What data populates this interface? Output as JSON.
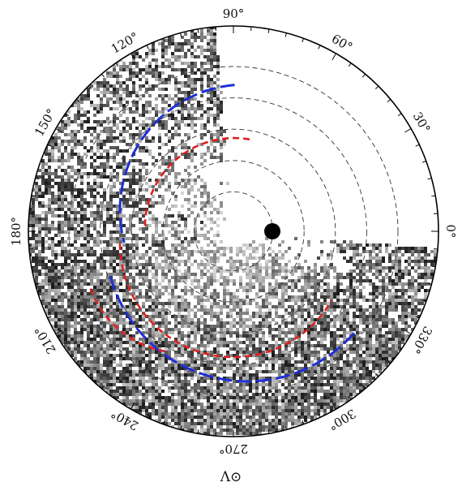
{
  "chart_data": {
    "type": "scatter",
    "projection": "polar",
    "angular_axis": {
      "label": "Λ⊙",
      "direction": "counterclockwise",
      "zero_position": "right",
      "ticks": [
        "0°",
        "30°",
        "60°",
        "90°",
        "120°",
        "150°",
        "180°",
        "210°",
        "240°",
        "270°",
        "300°",
        "330°"
      ]
    },
    "radial_grid": {
      "style": "dashed",
      "rings": 5
    },
    "density_map": {
      "style": "grayscale",
      "coverage_deg": [
        95,
        355
      ],
      "empty_sector_deg": [
        355,
        95
      ],
      "streams": [
        {
          "angle_deg": 165,
          "shade": "dark"
        },
        {
          "angle_deg": 190,
          "shade": "dark"
        }
      ]
    },
    "center_marker": {
      "shape": "circle",
      "color": "#000000",
      "offset_deg": 0
    },
    "overlay_arcs": [
      {
        "color": "#1f2fd6",
        "style": "long-dash",
        "from_deg": 95,
        "to_deg": 195
      },
      {
        "color": "#1f2fd6",
        "style": "long-dash",
        "from_deg": 195,
        "to_deg": 320
      },
      {
        "color": "#e02020",
        "style": "short-dash",
        "from_deg": 80,
        "to_deg": 180
      },
      {
        "color": "#e02020",
        "style": "short-dash",
        "from_deg": 180,
        "to_deg": 330
      },
      {
        "color": "#e02020",
        "style": "short-dash",
        "from_deg": 200,
        "to_deg": 260
      }
    ]
  }
}
